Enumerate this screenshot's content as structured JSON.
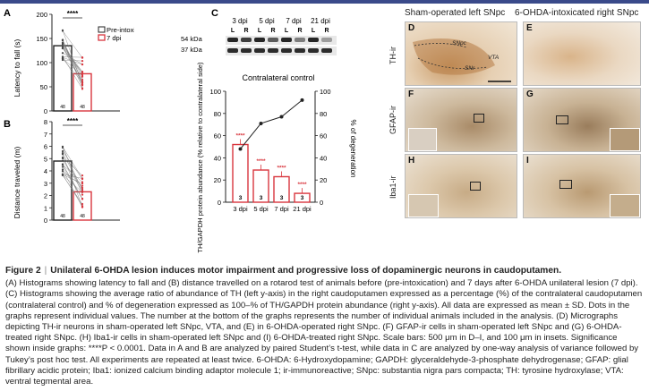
{
  "figure": {
    "panel_letters": [
      "A",
      "B",
      "C",
      "D",
      "E",
      "F",
      "G",
      "H",
      "I"
    ],
    "significance": "****"
  },
  "panel_a": {
    "ylabel": "Latency to fall (s)",
    "legend": [
      "Pre-intoxication",
      "7 dpi"
    ],
    "n_labels": [
      "48",
      "48"
    ],
    "chart_data": {
      "type": "bar",
      "categories": [
        "Pre-intoxication",
        "7 dpi"
      ],
      "values": [
        135,
        77
      ],
      "ylim": [
        0,
        200
      ],
      "yticks": [
        "0",
        "50",
        "100",
        "150",
        "200"
      ]
    }
  },
  "panel_b": {
    "ylabel": "Distance traveled (m)",
    "n_labels": [
      "48",
      "48"
    ],
    "chart_data": {
      "type": "bar",
      "categories": [
        "Pre-intoxication",
        "7 dpi"
      ],
      "values": [
        4.8,
        2.3
      ],
      "ylim": [
        0,
        8
      ],
      "yticks": [
        "0",
        "1",
        "2",
        "3",
        "4",
        "5",
        "6",
        "7",
        "8"
      ]
    }
  },
  "panel_c": {
    "blot": {
      "lanes": [
        "3 dpi",
        "5 dpi",
        "7 dpi",
        "21 dpi"
      ],
      "sides": [
        "L",
        "R",
        "L",
        "R",
        "L",
        "R",
        "L",
        "R"
      ],
      "bands": [
        "54 kDa",
        "37 kDa"
      ]
    },
    "title": "Contralateral control",
    "ylabel_left": "TH/GAPDH protein abundance (% relative to contralateral side)",
    "ylabel_right": "% of degeneration",
    "chart_data": {
      "type": "bar",
      "categories": [
        "3 dpi",
        "5 dpi",
        "7 dpi",
        "21 dpi"
      ],
      "values": [
        52,
        29,
        23,
        8
      ],
      "n": [
        "3",
        "3",
        "3",
        "3"
      ],
      "ylim": [
        0,
        100
      ],
      "yticks": [
        "0",
        "20",
        "40",
        "60",
        "80",
        "100"
      ],
      "degeneration": [
        48,
        71,
        77,
        92
      ],
      "stars": [
        "****",
        "****",
        "****",
        "****"
      ]
    }
  },
  "micrographs": {
    "col_heads": [
      "Sham-operated left SNpc",
      "6-OHDA-intoxicated right SNpc"
    ],
    "row_labels": [
      "TH-ir",
      "GFAP-ir",
      "Iba1-ir"
    ],
    "annotations": [
      "SNpc",
      "VTA",
      "SNr"
    ]
  },
  "caption": {
    "fig_label": "Figure 2",
    "title": "Unilateral 6-OHDA lesion induces motor impairment and progressive loss of dopaminergic neurons in caudoputamen.",
    "body": "(A) Histograms showing latency to fall and (B) distance travelled on a rotarod test of animals before (pre-intoxication) and 7 days after 6-OHDA unilateral lesion (7 dpi). (C) Histograms showing the average ratio of abundance of TH (left y-axis) in the right caudoputamen expressed as a percentage (%) of the contralateral caudoputamen (contralateral control) and % of degeneration expressed as 100–% of TH/GAPDH protein abundance (right y-axis). All data are expressed as mean ± SD. Dots in the graphs represent individual values. The number at the bottom of the graphs represents the number of individual animals included in the analysis. (D) Micrographs depicting TH-ir neurons in sham-operated left SNpc, VTA, and (E) in 6-OHDA-operated right SNpc. (F) GFAP-ir cells in sham-operated left SNpc and (G) 6-OHDA-treated right SNpc. (H) Iba1-ir cells in sham-operated left SNpc and (I) 6-OHDA-treated right SNpc. Scale bars: 500 μm in D–I, and 100 μm in insets. Significance shown inside graphs: ****P < 0.0001. Data in A and B are analyzed by paired Student’s t-test, while data in C are analyzed by one-way analysis of variance followed by Tukey’s post hoc test. All experiments are repeated at least twice. 6-OHDA: 6-Hydroxydopamine; GAPDH: glyceraldehyde-3-phosphate dehydrogenase; GFAP: glial fibrillary acidic protein; Iba1: ionized calcium binding adaptor molecule 1; ir-immunoreactive; SNpc: substantia nigra pars compacta; TH: tyrosine hydroxylase; VTA: ventral tegmental area."
  }
}
